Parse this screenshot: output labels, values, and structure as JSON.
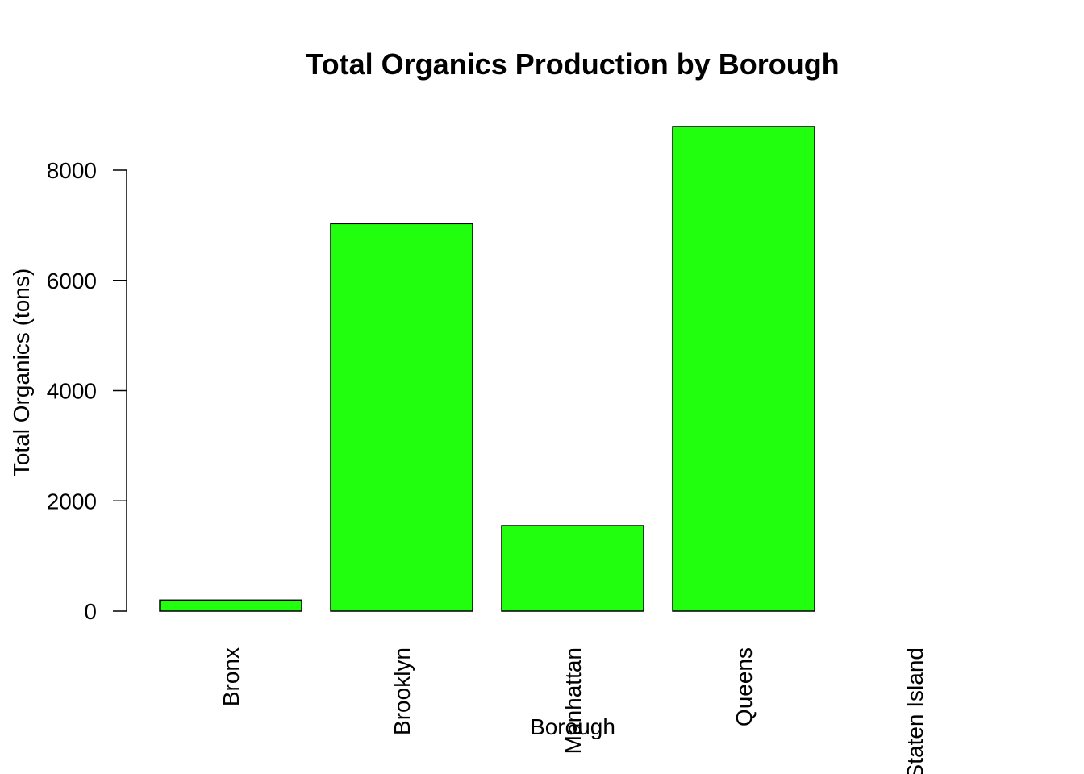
{
  "chart_data": {
    "type": "bar",
    "title": "Total Organics Production by Borough",
    "xlabel": "Borough",
    "ylabel": "Total Organics (tons)",
    "categories": [
      "Bronx",
      "Brooklyn",
      "Manhattan",
      "Queens",
      "Staten Island"
    ],
    "values": [
      200,
      7030,
      1550,
      8790,
      0
    ],
    "ylim": [
      0,
      8790
    ],
    "yticks": [
      0,
      2000,
      4000,
      6000,
      8000
    ],
    "yticks_labels": [
      "0",
      "2000",
      "4000",
      "6000",
      "8000"
    ],
    "bar_color": "#22ff0e",
    "grid": false,
    "legend": "none"
  }
}
